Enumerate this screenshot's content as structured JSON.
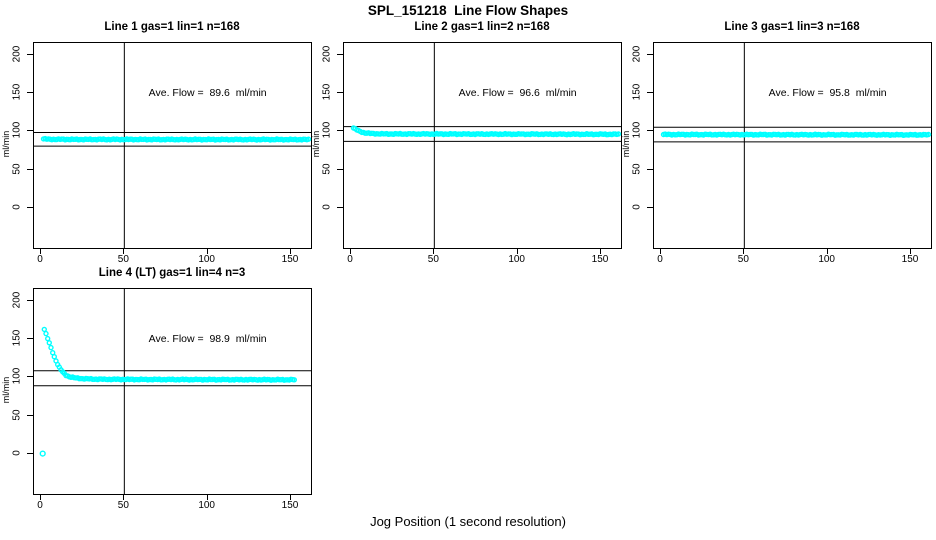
{
  "page": {
    "main_title": "SPL_151218  Line Flow Shapes",
    "x_axis_label": "Jog Position (1 second resolution)",
    "background_color": "#ffffff",
    "point_color": "#00FFFF",
    "line_color": "#000000",
    "text_color": "#000000"
  },
  "chart_data": [
    {
      "type": "scatter",
      "title": "Line 1 gas=1 lin=1 n=168",
      "annotation": "Ave. Flow =  89.6  ml/min",
      "ave_flow": 89.6,
      "n": 168,
      "ylabel": "ml/min",
      "x_ticks": [
        0,
        50,
        100,
        150
      ],
      "y_ticks": [
        0,
        50,
        100,
        150,
        200
      ],
      "xlim": [
        -4.2,
        162
      ],
      "ylim": [
        -53,
        216
      ],
      "grid": false,
      "vline_x": 50,
      "hlines": [
        98.6,
        80.6
      ],
      "marker": "open-circle",
      "jitter": 0.7,
      "series_breakpoints": [
        [
          1.5,
          90.2
        ],
        [
          5,
          89.7
        ],
        [
          20,
          89.5
        ],
        [
          160,
          89.3
        ]
      ],
      "outliers": [],
      "annotation_pos": [
        100,
        150
      ]
    },
    {
      "type": "scatter",
      "title": "Line 2 gas=1 lin=2 n=168",
      "annotation": "Ave. Flow =  96.6  ml/min",
      "ave_flow": 96.6,
      "n": 168,
      "ylabel": "ml/min",
      "x_ticks": [
        0,
        50,
        100,
        150
      ],
      "y_ticks": [
        0,
        50,
        100,
        150,
        200
      ],
      "xlim": [
        -4.2,
        162
      ],
      "ylim": [
        -53,
        216
      ],
      "grid": false,
      "vline_x": 50,
      "hlines": [
        106.3,
        86.9
      ],
      "marker": "open-circle",
      "jitter": 0.7,
      "series_breakpoints": [
        [
          1.5,
          104.5
        ],
        [
          3,
          102.5
        ],
        [
          5,
          100.2
        ],
        [
          8,
          98.2
        ],
        [
          12,
          97.2
        ],
        [
          20,
          96.7
        ],
        [
          160,
          96.2
        ]
      ],
      "outliers": [],
      "annotation_pos": [
        100,
        150
      ]
    },
    {
      "type": "scatter",
      "title": "Line 3 gas=1 lin=3 n=168",
      "annotation": "Ave. Flow =  95.8  ml/min",
      "ave_flow": 95.8,
      "n": 168,
      "ylabel": "ml/min",
      "x_ticks": [
        0,
        50,
        100,
        150
      ],
      "y_ticks": [
        0,
        50,
        100,
        150,
        200
      ],
      "xlim": [
        -4.2,
        162
      ],
      "ylim": [
        -53,
        216
      ],
      "grid": false,
      "vline_x": 50,
      "hlines": [
        105.4,
        86.2
      ],
      "marker": "open-circle",
      "jitter": 0.7,
      "series_breakpoints": [
        [
          1.5,
          95.9
        ],
        [
          160,
          95.5
        ]
      ],
      "outliers": [],
      "annotation_pos": [
        100,
        150
      ]
    },
    {
      "type": "scatter",
      "title": "Line 4 (LT) gas=1 lin=4 n=3",
      "annotation": "Ave. Flow =  98.9  ml/min",
      "ave_flow": 98.9,
      "n": 3,
      "ylabel": "ml/min",
      "x_ticks": [
        0,
        50,
        100,
        150
      ],
      "y_ticks": [
        0,
        50,
        100,
        150,
        200
      ],
      "xlim": [
        -4.2,
        162
      ],
      "ylim": [
        -53,
        216
      ],
      "grid": false,
      "vline_x": 50,
      "hlines": [
        108.8,
        89.0
      ],
      "marker": "open-circle",
      "jitter": 0.7,
      "series_breakpoints": [
        [
          2,
          163
        ],
        [
          3,
          157
        ],
        [
          4,
          151
        ],
        [
          5,
          145
        ],
        [
          6,
          139
        ],
        [
          7,
          133
        ],
        [
          8,
          127
        ],
        [
          9,
          122
        ],
        [
          10,
          117
        ],
        [
          11,
          113
        ],
        [
          12,
          110
        ],
        [
          13,
          107
        ],
        [
          14,
          105
        ],
        [
          15,
          103
        ],
        [
          17,
          101
        ],
        [
          20,
          99.5
        ],
        [
          25,
          98.3
        ],
        [
          35,
          97.6
        ],
        [
          60,
          97.3
        ],
        [
          152,
          96.9
        ]
      ],
      "outliers": [
        [
          1,
          0
        ]
      ],
      "annotation_pos": [
        100,
        150
      ]
    }
  ],
  "layout_note": "2x2 panel grid, bottom-right panel empty"
}
